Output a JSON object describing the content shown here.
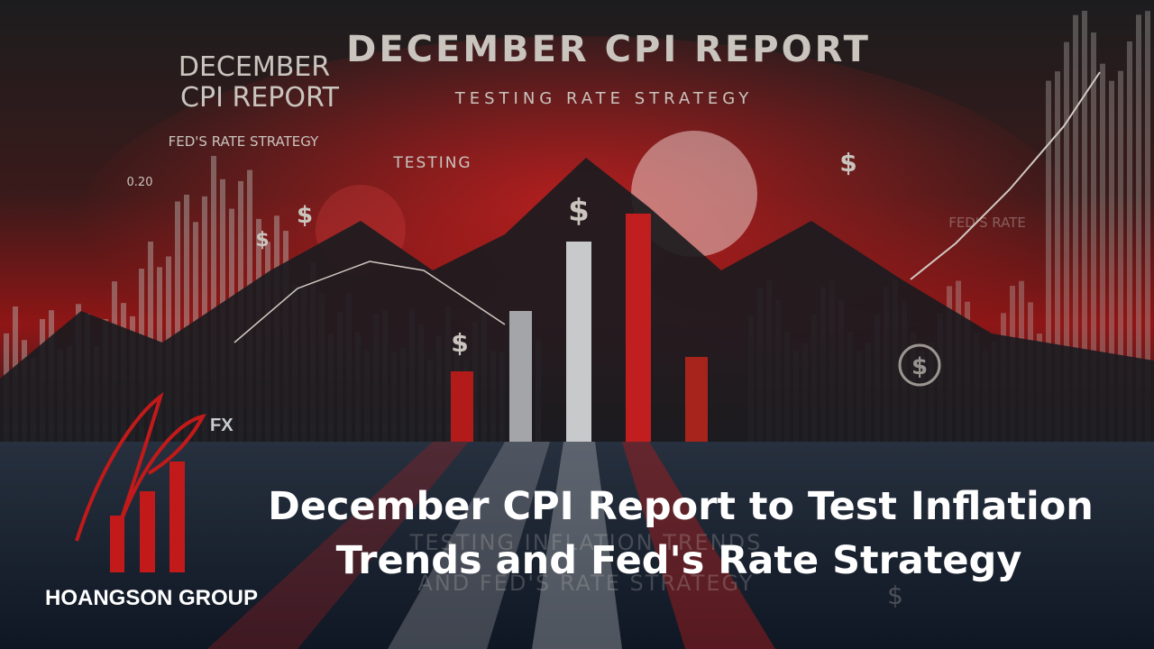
{
  "background": {
    "title": "DECEMBER CPI REPORT",
    "left_title": [
      "DECEMBER",
      "CPI REPORT"
    ],
    "subtitle": "TESTING RATE STRATEGY",
    "left_subtitle": "FED'S RATE STRATEGY",
    "testing": "TESTING",
    "level": "0.20",
    "right_label": "FED'S RATE",
    "reflection": [
      "TESTING INFLATION TRENDS",
      "AND FED'S RATE STRATEGY"
    ],
    "dollar_signs": [
      "$",
      "$",
      "$",
      "$",
      "$",
      "$",
      "$"
    ]
  },
  "logo": {
    "badge": "FX",
    "brand": "HOANGSON GROUP"
  },
  "headline": {
    "lines": [
      "December CPI Report to Test Inflation",
      "Trends and Fed's Rate Strategy"
    ]
  }
}
